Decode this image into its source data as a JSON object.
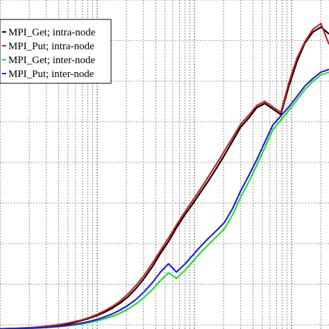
{
  "chart_data": {
    "type": "line",
    "title": "",
    "xlabel": "",
    "ylabel": "",
    "x_grid_log": true,
    "grid": "dotted",
    "legend_placement": "top-left",
    "series": [
      {
        "name": "MPI_Get; intra-node",
        "color": "#000000",
        "x": [
          0,
          1,
          2,
          3,
          4,
          5,
          6,
          7,
          8,
          9,
          10,
          11,
          12,
          13,
          14,
          15,
          16,
          17,
          18,
          19,
          20,
          21,
          22,
          23,
          24,
          25,
          26,
          27,
          28,
          29,
          30,
          31,
          32,
          33,
          34,
          35,
          36,
          37,
          38,
          39,
          40,
          41
        ],
        "y": [
          0.3,
          0.5,
          0.8,
          1.2,
          1.8,
          2.5,
          3.5,
          4.8,
          6.5,
          8.6,
          11.6,
          15.0,
          19.0,
          24.0,
          30.0,
          37.5,
          47.0,
          59.0,
          73.5,
          90.0,
          109,
          126,
          146,
          164,
          180,
          197,
          214,
          232,
          251,
          271,
          291,
          304,
          319,
          325,
          317,
          309,
          350,
          385,
          412,
          428,
          435,
          425
        ]
      },
      {
        "name": "MPI_Put; intra-node",
        "color": "#cc1f1f",
        "x": [
          0,
          1,
          2,
          3,
          4,
          5,
          6,
          7,
          8,
          9,
          10,
          11,
          12,
          13,
          14,
          15,
          16,
          17,
          18,
          19,
          20,
          21,
          22,
          23,
          24,
          25,
          26,
          27,
          28,
          29,
          30,
          31,
          32,
          33,
          34,
          35,
          36,
          37,
          38,
          39,
          40,
          41
        ],
        "y": [
          0.3,
          0.6,
          1.0,
          1.5,
          2.2,
          3.1,
          4.3,
          5.8,
          7.6,
          9.9,
          12.5,
          16.0,
          20.5,
          26.0,
          32.5,
          40.5,
          51.0,
          63.5,
          78.0,
          95.0,
          113,
          131,
          150,
          168,
          185,
          202,
          220,
          238,
          257,
          276,
          295,
          308,
          322,
          328,
          320,
          312,
          355,
          390,
          414,
          432,
          440,
          410
        ]
      },
      {
        "name": "MPI_Get; inter-node",
        "color": "#22dd22",
        "x": [
          0,
          1,
          2,
          3,
          4,
          5,
          6,
          7,
          8,
          9,
          10,
          11,
          12,
          13,
          14,
          15,
          16,
          17,
          18,
          19,
          20,
          21,
          22,
          23,
          24,
          25,
          26,
          27,
          28,
          29,
          30,
          31,
          32,
          33,
          34,
          35,
          36,
          37,
          38,
          39,
          40,
          41
        ],
        "y": [
          0.3,
          0.4,
          0.6,
          0.8,
          1.1,
          1.6,
          2.2,
          3.1,
          4.1,
          5.4,
          7.0,
          9.0,
          11.6,
          14.6,
          18.3,
          23.0,
          29.0,
          36.5,
          46.0,
          57.0,
          70.0,
          81.0,
          73.0,
          84.0,
          97.0,
          110,
          122,
          133,
          145,
          165,
          190,
          212,
          236,
          261,
          287,
          301,
          315,
          330,
          345,
          357,
          366,
          370
        ]
      },
      {
        "name": "MPI_Put; inter-node",
        "color": "#1a1aee",
        "x": [
          0,
          1,
          2,
          3,
          4,
          5,
          6,
          7,
          8,
          9,
          10,
          11,
          12,
          13,
          14,
          15,
          16,
          17,
          18,
          19,
          20,
          21,
          22,
          23,
          24,
          25,
          26,
          27,
          28,
          29,
          30,
          31,
          32,
          33,
          34,
          35,
          36,
          37,
          38,
          39,
          40,
          41
        ],
        "y": [
          0.3,
          0.5,
          0.7,
          1.0,
          1.4,
          1.9,
          2.6,
          3.5,
          4.7,
          6.2,
          8.0,
          10.4,
          13.4,
          17.2,
          21.8,
          27.5,
          34.5,
          43.0,
          54.0,
          67.0,
          82.0,
          94.0,
          82.0,
          93.0,
          106,
          119,
          131,
          142,
          154,
          174,
          199,
          221,
          244,
          269,
          294,
          307,
          320,
          335,
          350,
          361,
          370,
          374
        ]
      }
    ]
  }
}
